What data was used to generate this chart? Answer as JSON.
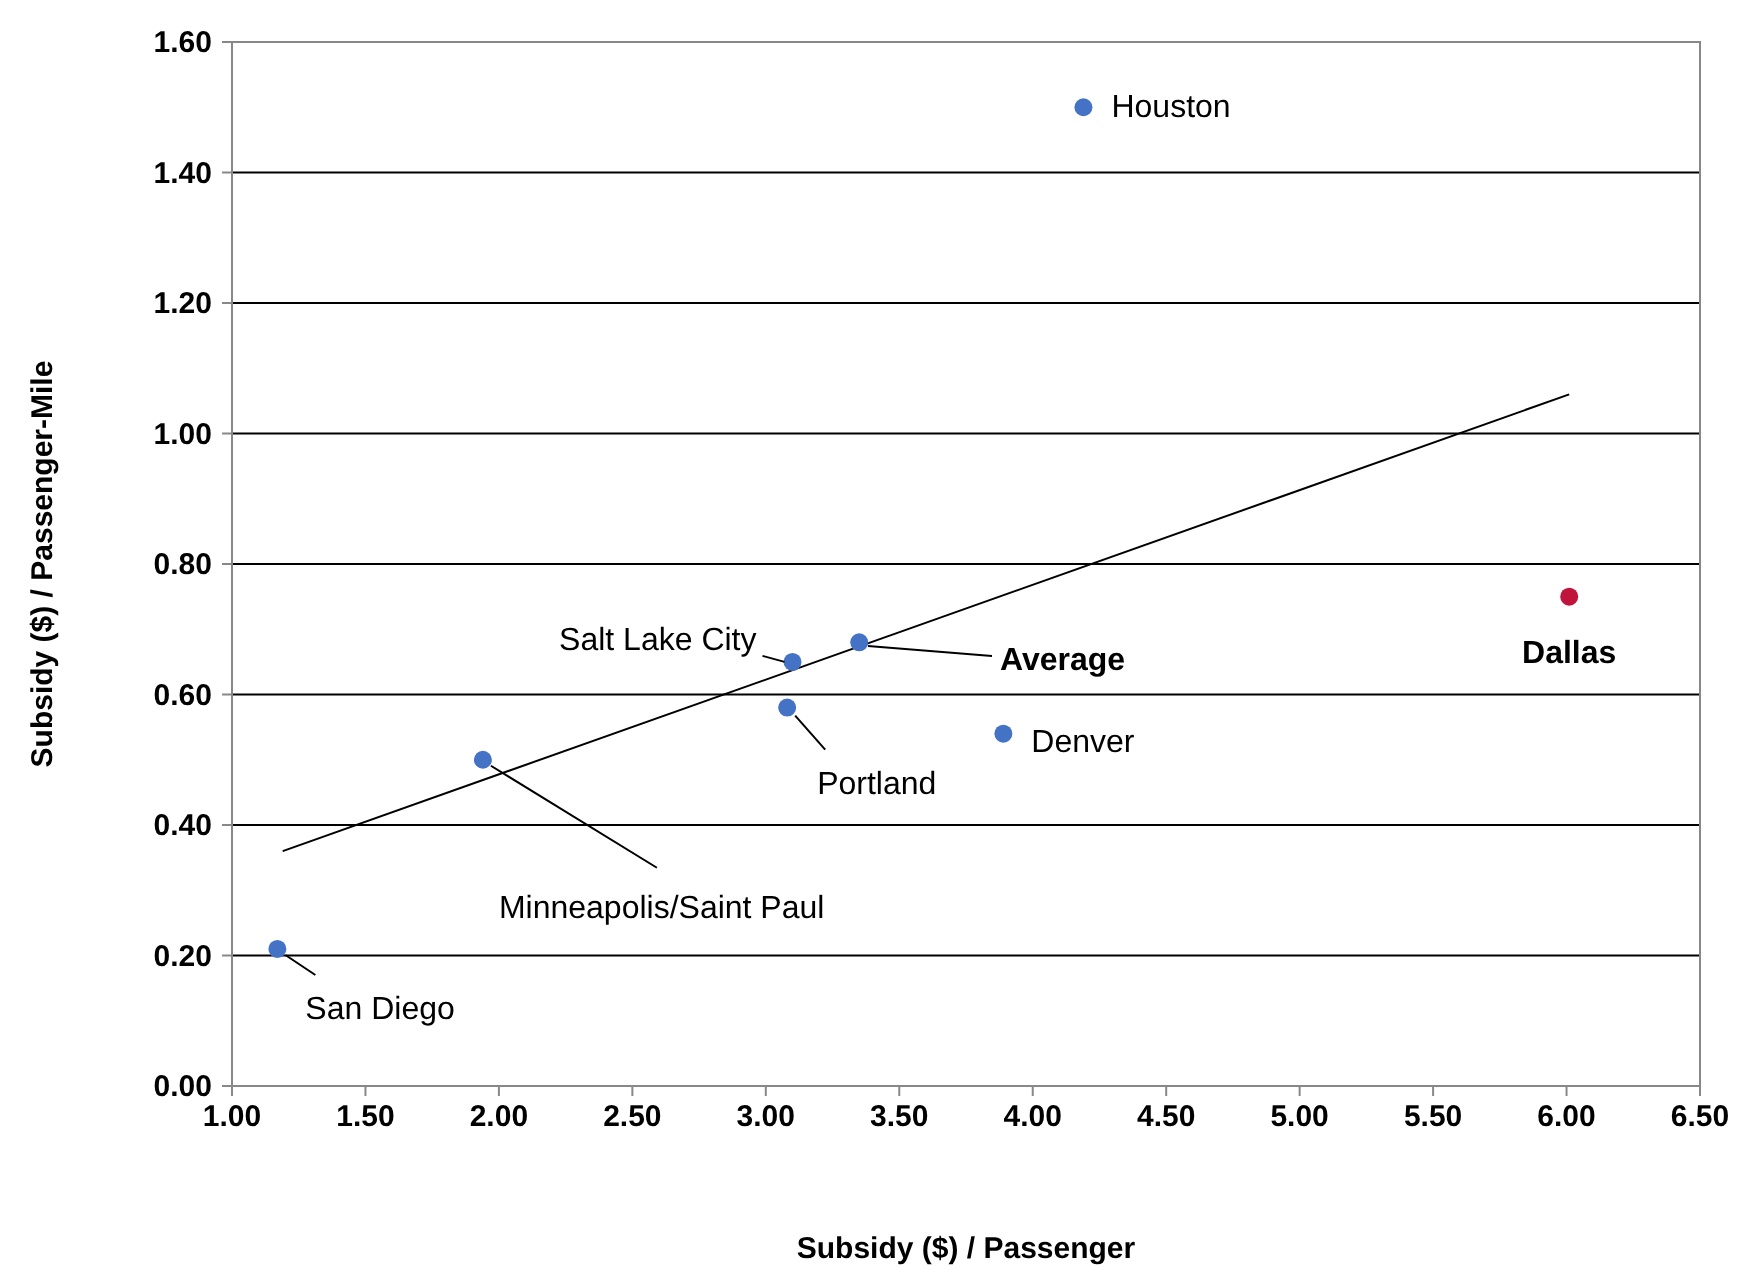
{
  "chart_data": {
    "type": "scatter",
    "xlabel": "Subsidy ($) / Passenger",
    "ylabel": "Subsidy ($) / Passenger-Mile",
    "xlim": [
      1,
      6.5
    ],
    "xticks": [
      {
        "value": 1,
        "label": "1.00"
      },
      {
        "value": 1.5,
        "label": "1.50"
      },
      {
        "value": 2,
        "label": "2.00"
      },
      {
        "value": 2.5,
        "label": "2.50"
      },
      {
        "value": 3,
        "label": "3.00"
      },
      {
        "value": 3.5,
        "label": "3.50"
      },
      {
        "value": 4,
        "label": "4.00"
      },
      {
        "value": 4.5,
        "label": "4.50"
      },
      {
        "value": 5,
        "label": "5.00"
      },
      {
        "value": 5.5,
        "label": "5.50"
      },
      {
        "value": 6,
        "label": "6.00"
      },
      {
        "value": 6.5,
        "label": "6.50"
      }
    ],
    "ylim": [
      0,
      1.6
    ],
    "yticks": [
      {
        "value": 0,
        "label": "0.00"
      },
      {
        "value": 0.2,
        "label": "0.20"
      },
      {
        "value": 0.4,
        "label": "0.40"
      },
      {
        "value": 0.6,
        "label": "0.60"
      },
      {
        "value": 0.8,
        "label": "0.80"
      },
      {
        "value": 1,
        "label": "1.00"
      },
      {
        "value": 1.2,
        "label": "1.20"
      },
      {
        "value": 1.4,
        "label": "1.40"
      },
      {
        "value": 1.6,
        "label": "1.60"
      }
    ],
    "grid": "y",
    "marker": "circle",
    "series": [
      {
        "x": [
          4.19,
          6.01,
          3.1,
          3.35,
          3.08,
          3.89,
          1.94,
          1.17
        ],
        "values": [
          1.5,
          0.75,
          0.65,
          0.68,
          0.58,
          0.54,
          0.5,
          0.21
        ],
        "colors": [
          "#4472c4",
          "#c0143c",
          "#4472c4",
          "#4472c4",
          "#4472c4",
          "#4472c4",
          "#4472c4",
          "#4472c4"
        ]
      },
      {
        "type": "line",
        "color": "#000000",
        "marker": "none",
        "x": [
          1.19,
          6.01
        ],
        "values": [
          0.36,
          1.06
        ]
      }
    ],
    "annotations": [
      {
        "text": "Houston",
        "x": 4.19,
        "y": 1.5
      },
      {
        "text": "Dallas",
        "x": 6.01,
        "y": 0.75
      },
      {
        "text": "Salt Lake City",
        "x": 3.1,
        "y": 0.65
      },
      "Average",
      {
        "text": "Portland",
        "x": 3.08,
        "y": 0.58
      },
      {
        "text": "Denver",
        "x": 3.89,
        "y": 0.54
      },
      {
        "text": "Minneapolis/Saint Paul",
        "x": 1.94,
        "y": 0.5
      },
      {
        "text": "San Diego",
        "x": 1.17,
        "y": 0.21
      }
    ]
  }
}
